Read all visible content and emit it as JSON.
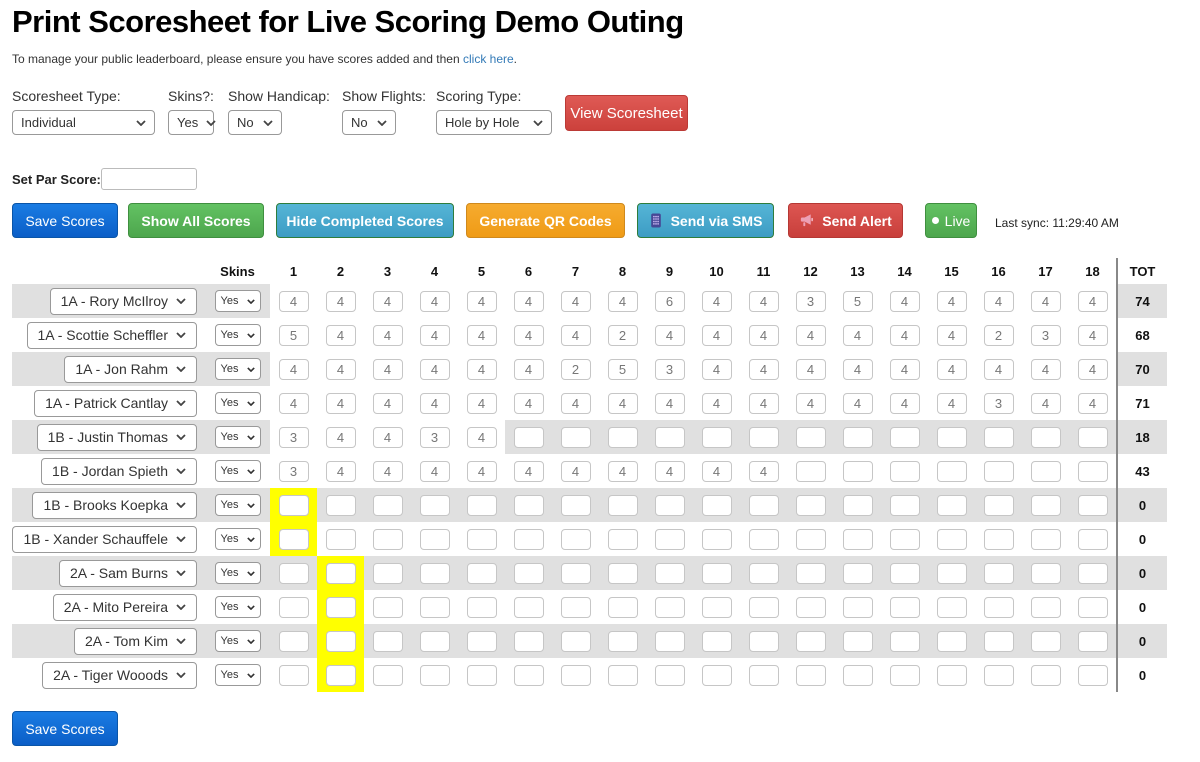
{
  "page": {
    "title": "Print Scoresheet for Live Scoring Demo Outing",
    "subtitle_prefix": "To manage your public leaderboard, please ensure you have scores added and then ",
    "subtitle_link": "click here",
    "subtitle_suffix": "."
  },
  "controls": {
    "scoresheet_type": {
      "label": "Scoresheet Type:",
      "value": "Individual"
    },
    "skins": {
      "label": "Skins?:",
      "value": "Yes"
    },
    "show_handicap": {
      "label": "Show Handicap:",
      "value": "No"
    },
    "show_flights": {
      "label": "Show Flights:",
      "value": "No"
    },
    "scoring_type": {
      "label": "Scoring Type:",
      "value": "Hole by Hole"
    },
    "view_scoresheet_label": "View Scoresheet"
  },
  "par": {
    "label": "Set Par Score:",
    "value": ""
  },
  "toolbar": {
    "save_label": "Save Scores",
    "show_all_label": "Show All Scores",
    "hide_completed_label": "Hide Completed Scores",
    "generate_qr_label": "Generate QR Codes",
    "send_sms_label": "Send via SMS",
    "send_alert_label": "Send Alert",
    "live_label": "Live",
    "last_sync": "Last sync: 11:29:40 AM"
  },
  "table": {
    "skins_header": "Skins",
    "holes": [
      "1",
      "2",
      "3",
      "4",
      "5",
      "6",
      "7",
      "8",
      "9",
      "10",
      "11",
      "12",
      "13",
      "14",
      "15",
      "16",
      "17",
      "18"
    ],
    "total_header": "TOT",
    "rows": [
      {
        "player": "1A - Rory McIlroy",
        "skins": "Yes",
        "scores": [
          "4",
          "4",
          "4",
          "4",
          "4",
          "4",
          "4",
          "4",
          "6",
          "4",
          "4",
          "3",
          "5",
          "4",
          "4",
          "4",
          "4",
          "4"
        ],
        "total": "74",
        "highlight": 0
      },
      {
        "player": "1A - Scottie Scheffler",
        "skins": "Yes",
        "scores": [
          "5",
          "4",
          "4",
          "4",
          "4",
          "4",
          "4",
          "2",
          "4",
          "4",
          "4",
          "4",
          "4",
          "4",
          "4",
          "2",
          "3",
          "4"
        ],
        "total": "68",
        "highlight": 0
      },
      {
        "player": "1A - Jon Rahm",
        "skins": "Yes",
        "scores": [
          "4",
          "4",
          "4",
          "4",
          "4",
          "4",
          "2",
          "5",
          "3",
          "4",
          "4",
          "4",
          "4",
          "4",
          "4",
          "4",
          "4",
          "4"
        ],
        "total": "70",
        "highlight": 0
      },
      {
        "player": "1A - Patrick Cantlay",
        "skins": "Yes",
        "scores": [
          "4",
          "4",
          "4",
          "4",
          "4",
          "4",
          "4",
          "4",
          "4",
          "4",
          "4",
          "4",
          "4",
          "4",
          "4",
          "3",
          "4",
          "4"
        ],
        "total": "71",
        "highlight": 0
      },
      {
        "player": "1B - Justin Thomas",
        "skins": "Yes",
        "scores": [
          "3",
          "4",
          "4",
          "3",
          "4",
          "",
          "",
          "",
          "",
          "",
          "",
          "",
          "",
          "",
          "",
          "",
          "",
          ""
        ],
        "total": "18",
        "highlight": 0
      },
      {
        "player": "1B - Jordan Spieth",
        "skins": "Yes",
        "scores": [
          "3",
          "4",
          "4",
          "4",
          "4",
          "4",
          "4",
          "4",
          "4",
          "4",
          "4",
          "",
          "",
          "",
          "",
          "",
          "",
          ""
        ],
        "total": "43",
        "highlight": 0
      },
      {
        "player": "1B - Brooks Koepka",
        "skins": "Yes",
        "scores": [
          "",
          "",
          "",
          "",
          "",
          "",
          "",
          "",
          "",
          "",
          "",
          "",
          "",
          "",
          "",
          "",
          "",
          ""
        ],
        "total": "0",
        "highlight": 1
      },
      {
        "player": "1B - Xander Schauffele",
        "skins": "Yes",
        "scores": [
          "",
          "",
          "",
          "",
          "",
          "",
          "",
          "",
          "",
          "",
          "",
          "",
          "",
          "",
          "",
          "",
          "",
          ""
        ],
        "total": "0",
        "highlight": 1
      },
      {
        "player": "2A - Sam Burns",
        "skins": "Yes",
        "scores": [
          "",
          "",
          "",
          "",
          "",
          "",
          "",
          "",
          "",
          "",
          "",
          "",
          "",
          "",
          "",
          "",
          "",
          ""
        ],
        "total": "0",
        "highlight": 2
      },
      {
        "player": "2A - Mito Pereira",
        "skins": "Yes",
        "scores": [
          "",
          "",
          "",
          "",
          "",
          "",
          "",
          "",
          "",
          "",
          "",
          "",
          "",
          "",
          "",
          "",
          "",
          ""
        ],
        "total": "0",
        "highlight": 2
      },
      {
        "player": "2A - Tom Kim",
        "skins": "Yes",
        "scores": [
          "",
          "",
          "",
          "",
          "",
          "",
          "",
          "",
          "",
          "",
          "",
          "",
          "",
          "",
          "",
          "",
          "",
          ""
        ],
        "total": "0",
        "highlight": 2
      },
      {
        "player": "2A - Tiger Wooods",
        "skins": "Yes",
        "scores": [
          "",
          "",
          "",
          "",
          "",
          "",
          "",
          "",
          "",
          "",
          "",
          "",
          "",
          "",
          "",
          "",
          "",
          ""
        ],
        "total": "0",
        "highlight": 2
      }
    ]
  },
  "footer": {
    "save_label": "Save Scores"
  },
  "colors": {
    "primary_blue": "#0f6bcd",
    "green": "#5cb85c",
    "teal": "#46aed0",
    "orange": "#f0a030",
    "red": "#d9534f",
    "link_blue": "#337ab7",
    "stripe_grey": "#e0e0e0",
    "highlight_yellow": "#ffff00",
    "divider_grey": "#888888"
  }
}
